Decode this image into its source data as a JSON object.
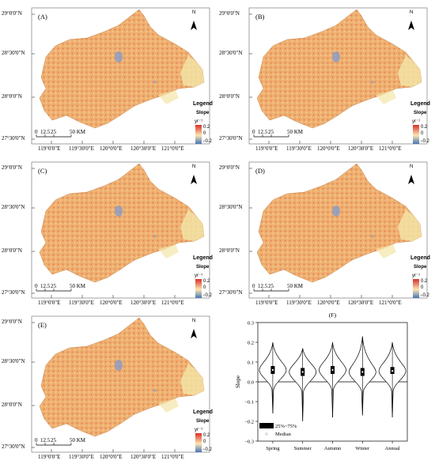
{
  "colors": {
    "map_fill": "#efb071",
    "map_light": "#f3e6a8",
    "map_dark": "#d9603a",
    "map_blue": "#7a9ad6",
    "legend_high": "#d73027",
    "legend_mid": "#fde6b0",
    "legend_low": "#4575b4",
    "violin_fill": "#ffffff",
    "box_color": "#000000"
  },
  "axes": {
    "lat_labels": [
      "29°0'0\"N",
      "28°30'0\"N",
      "28°0'0\"N",
      "27°30'0\"N"
    ],
    "lon_labels": [
      "119°0'0\"E",
      "119°30'0\"E",
      "120°0'0\"E",
      "120°30'0\"E",
      "121°0'0\"E"
    ]
  },
  "legend": {
    "title": "Legend",
    "subtitle": "Slope",
    "unit": "yr⁻¹",
    "high": "0.2",
    "mid": "0",
    "low": "−0.2"
  },
  "scalebar": {
    "labels": [
      "0",
      "12.5",
      "25",
      "50 KM"
    ]
  },
  "north_label": "N",
  "panels": [
    {
      "label": "(A)"
    },
    {
      "label": "(B)"
    },
    {
      "label": "(C)"
    },
    {
      "label": "(D)"
    },
    {
      "label": "(E)"
    }
  ],
  "chart_data": {
    "type": "violin",
    "title": "(F)",
    "ylabel": "Slope",
    "ylim": [
      -0.3,
      0.3
    ],
    "yticks": [
      "0.3",
      "0.2",
      "0.1",
      "0.0",
      "−0.1",
      "−0.2",
      "−0.3"
    ],
    "categories": [
      "Spring",
      "Summer",
      "Autumn",
      "Winter",
      "Annual"
    ],
    "medians": [
      0.06,
      0.05,
      0.06,
      0.05,
      0.055
    ],
    "q1": [
      0.04,
      0.03,
      0.04,
      0.03,
      0.04
    ],
    "q3": [
      0.08,
      0.07,
      0.08,
      0.07,
      0.075
    ],
    "min": [
      -0.16,
      -0.2,
      -0.18,
      -0.17,
      -0.18
    ],
    "max": [
      0.2,
      0.17,
      0.2,
      0.23,
      0.2
    ],
    "legend": {
      "box": "25%~75%",
      "median": "Median"
    }
  }
}
